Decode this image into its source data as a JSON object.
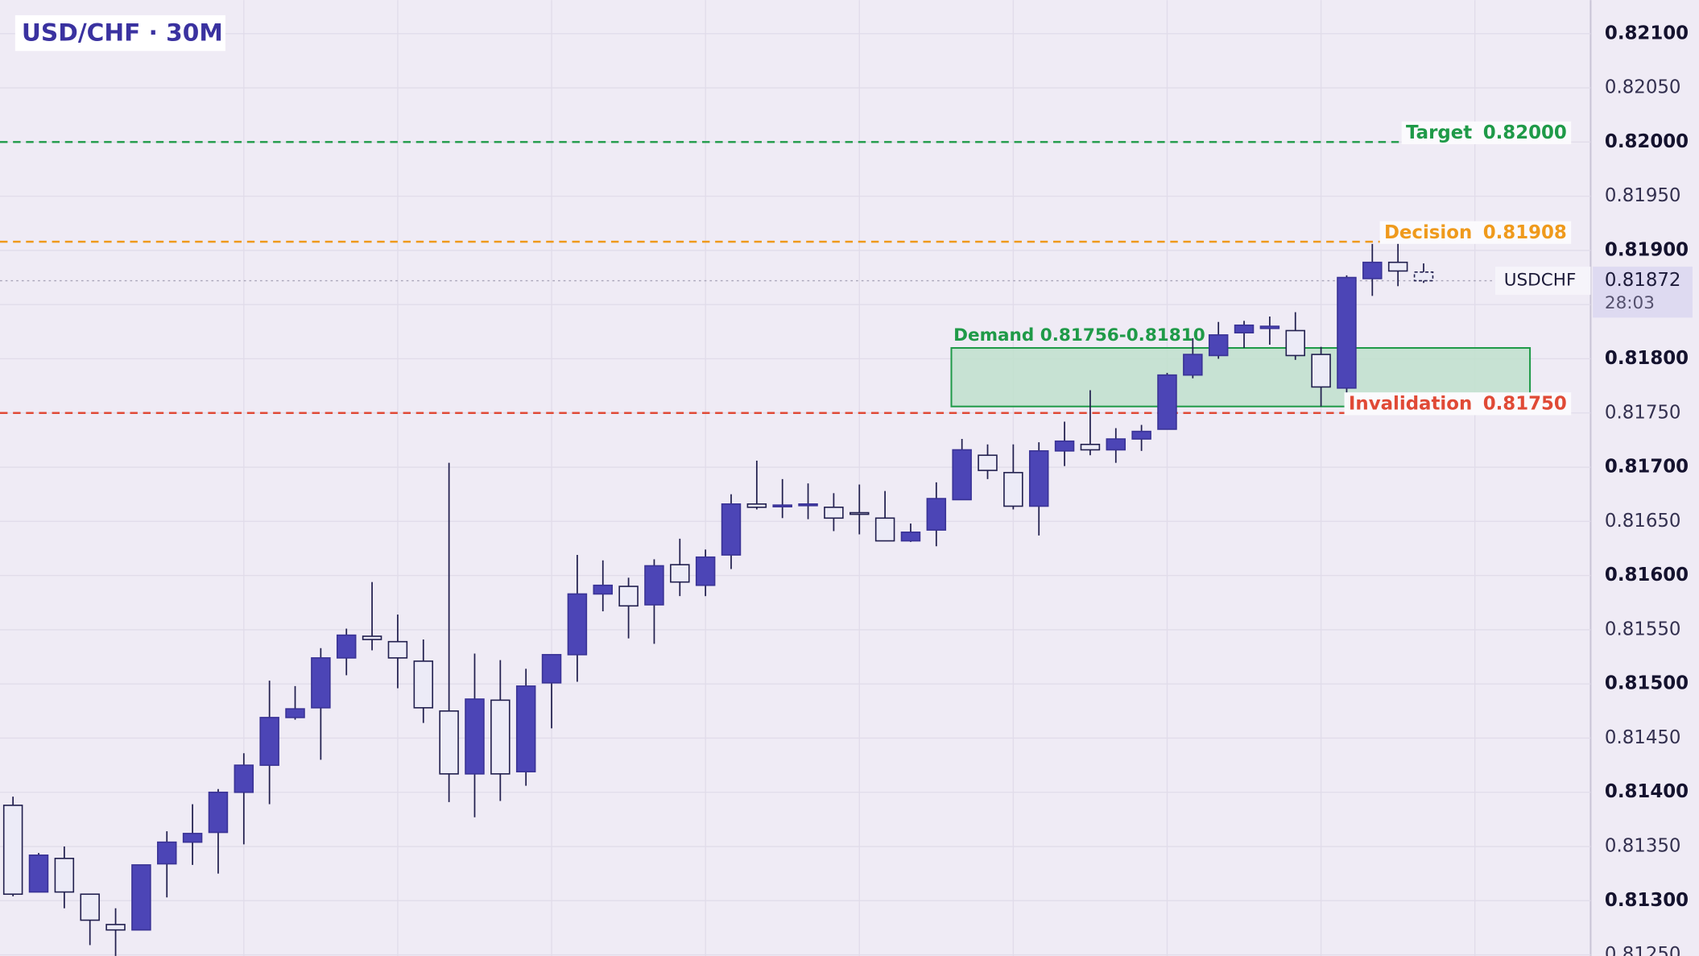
{
  "chart_data": {
    "type": "candlestick",
    "title": "USD/CHF · 30M",
    "ylim": [
      0.81249,
      0.82131
    ],
    "yticks": [
      {
        "value": 0.821,
        "label": "0.82100"
      },
      {
        "value": 0.8205,
        "label": "0.82050"
      },
      {
        "value": 0.82,
        "label": "0.82000"
      },
      {
        "value": 0.8195,
        "label": "0.81950"
      },
      {
        "value": 0.819,
        "label": "0.81900"
      },
      {
        "value": 0.8185,
        "label": "0.81850"
      },
      {
        "value": 0.818,
        "label": "0.81800"
      },
      {
        "value": 0.8175,
        "label": "0.81750"
      },
      {
        "value": 0.817,
        "label": "0.81700"
      },
      {
        "value": 0.8165,
        "label": "0.81650"
      },
      {
        "value": 0.816,
        "label": "0.81600"
      },
      {
        "value": 0.8155,
        "label": "0.81550"
      },
      {
        "value": 0.815,
        "label": "0.81500"
      },
      {
        "value": 0.8145,
        "label": "0.81450"
      },
      {
        "value": 0.814,
        "label": "0.81400"
      },
      {
        "value": 0.8135,
        "label": "0.81350"
      },
      {
        "value": 0.813,
        "label": "0.81300"
      },
      {
        "value": 0.8125,
        "label": "0.81250"
      }
    ],
    "grid": true,
    "up_color": "#4c45b6",
    "down_color": "#ecebf7",
    "wick_color": "#22204f",
    "open": [
      0.81388,
      0.81308,
      0.81339,
      0.81306,
      0.81278,
      0.81273,
      0.81334,
      0.81354,
      0.81363,
      0.814,
      0.81425,
      0.81469,
      0.81478,
      0.81524,
      0.81544,
      0.81539,
      0.81521,
      0.81475,
      0.81417,
      0.81485,
      0.81419,
      0.81501,
      0.81527,
      0.81583,
      0.8159,
      0.81573,
      0.8161,
      0.81591,
      0.81619,
      0.81666,
      0.81664,
      0.81665,
      0.81663,
      0.81658,
      0.81653,
      0.81632,
      0.81642,
      0.8167,
      0.81711,
      0.81695,
      0.81664,
      0.81715,
      0.81721,
      0.81716,
      0.81726,
      0.81735,
      0.81785,
      0.81803,
      0.81824,
      0.81828,
      0.81826,
      0.81804,
      0.81773,
      0.81874,
      0.81889,
      0.8188
    ],
    "high": [
      0.81396,
      0.81344,
      0.8135,
      0.81306,
      0.81293,
      0.81333,
      0.81364,
      0.81389,
      0.81403,
      0.81436,
      0.81503,
      0.81498,
      0.81533,
      0.81551,
      0.81594,
      0.81564,
      0.81541,
      0.81704,
      0.81528,
      0.81522,
      0.81514,
      0.81527,
      0.81619,
      0.81614,
      0.81598,
      0.81615,
      0.81634,
      0.81624,
      0.81675,
      0.81706,
      0.81689,
      0.81685,
      0.81676,
      0.81684,
      0.81678,
      0.81648,
      0.81686,
      0.81726,
      0.81721,
      0.81721,
      0.81723,
      0.81742,
      0.81771,
      0.81736,
      0.81739,
      0.81787,
      0.81819,
      0.81834,
      0.81835,
      0.81839,
      0.81843,
      0.81811,
      0.81877,
      0.81906,
      0.81907,
      0.81888
    ],
    "low": [
      0.81304,
      0.81308,
      0.81293,
      0.81259,
      0.81249,
      0.81273,
      0.81303,
      0.81333,
      0.81325,
      0.81352,
      0.81389,
      0.81467,
      0.8143,
      0.81508,
      0.81531,
      0.81496,
      0.81464,
      0.81391,
      0.81377,
      0.81392,
      0.81406,
      0.81459,
      0.81502,
      0.81567,
      0.81542,
      0.81537,
      0.81581,
      0.81581,
      0.81606,
      0.81661,
      0.81653,
      0.81652,
      0.81641,
      0.81638,
      0.81632,
      0.81631,
      0.81627,
      0.8167,
      0.81689,
      0.81661,
      0.81637,
      0.81701,
      0.81711,
      0.81704,
      0.81715,
      0.81735,
      0.81782,
      0.818,
      0.8181,
      0.81813,
      0.81799,
      0.81756,
      0.81759,
      0.81858,
      0.81867,
      0.8187
    ],
    "close": [
      0.81306,
      0.81342,
      0.81308,
      0.81282,
      0.81273,
      0.81333,
      0.81354,
      0.81362,
      0.814,
      0.81425,
      0.81469,
      0.81477,
      0.81524,
      0.81545,
      0.81541,
      0.81524,
      0.81478,
      0.81417,
      0.81486,
      0.81417,
      0.81498,
      0.81527,
      0.81583,
      0.81591,
      0.81572,
      0.81609,
      0.81594,
      0.81617,
      0.81666,
      0.81663,
      0.81665,
      0.81666,
      0.81653,
      0.81657,
      0.81632,
      0.8164,
      0.81671,
      0.81716,
      0.81697,
      0.81664,
      0.81715,
      0.81724,
      0.81716,
      0.81726,
      0.81733,
      0.81785,
      0.81804,
      0.81822,
      0.81831,
      0.8183,
      0.81803,
      0.81774,
      0.81875,
      0.81889,
      0.81881,
      0.81872
    ],
    "levels": [
      {
        "name": "Target",
        "value": 0.82,
        "value_label": "0.82000",
        "color": "#1f9a48"
      },
      {
        "name": "Decision",
        "value": 0.81908,
        "value_label": "0.81908",
        "color": "#ef9a1c"
      },
      {
        "name": "Invalidation",
        "value": 0.8175,
        "value_label": "0.81750",
        "color": "#e04a36"
      }
    ],
    "zone": {
      "label": "Demand 0.81756-0.81810",
      "low": 0.81756,
      "high": 0.8181,
      "color": "#1f9a48"
    },
    "current": {
      "symbol": "USDCHF",
      "value": 0.81872,
      "value_label": "0.81872",
      "countdown": "28:03"
    }
  }
}
